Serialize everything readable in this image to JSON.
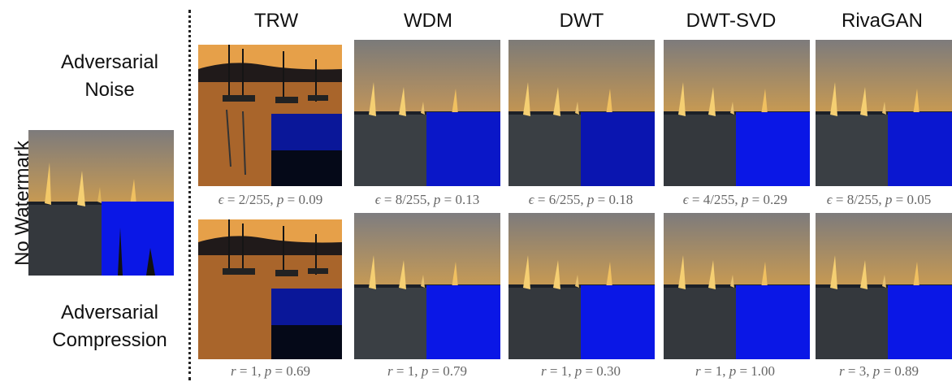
{
  "columns": [
    "TRW",
    "WDM",
    "DWT",
    "DWT-SVD",
    "RivaGAN"
  ],
  "rows": {
    "noise_line1": "Adversarial",
    "noise_line2": "Noise",
    "compression_line1": "Adversarial",
    "compression_line2": "Compression"
  },
  "no_watermark_label": "No Watermark",
  "captions_noise": [
    {
      "sym": "ϵ",
      "val": "2/255",
      "p": "0.09"
    },
    {
      "sym": "ϵ",
      "val": "8/255",
      "p": "0.13"
    },
    {
      "sym": "ϵ",
      "val": "6/255",
      "p": "0.18"
    },
    {
      "sym": "ϵ",
      "val": "4/255",
      "p": "0.29"
    },
    {
      "sym": "ϵ",
      "val": "8/255",
      "p": "0.05"
    }
  ],
  "captions_compression": [
    {
      "sym": "r",
      "val": "1",
      "p": "0.69"
    },
    {
      "sym": "r",
      "val": "1",
      "p": "0.79"
    },
    {
      "sym": "r",
      "val": "1",
      "p": "0.30"
    },
    {
      "sym": "r",
      "val": "1",
      "p": "1.00"
    },
    {
      "sym": "r",
      "val": "3",
      "p": "0.89"
    }
  ],
  "caption_p_symbol": "p",
  "colors": {
    "sky_top": "#7d7b7c",
    "sky_bottom": "#c89a52",
    "sea": "#34383d",
    "overlay_blue": "#0a17e6",
    "trw_sky": "#e6a049",
    "trw_water": "#a9652b"
  }
}
